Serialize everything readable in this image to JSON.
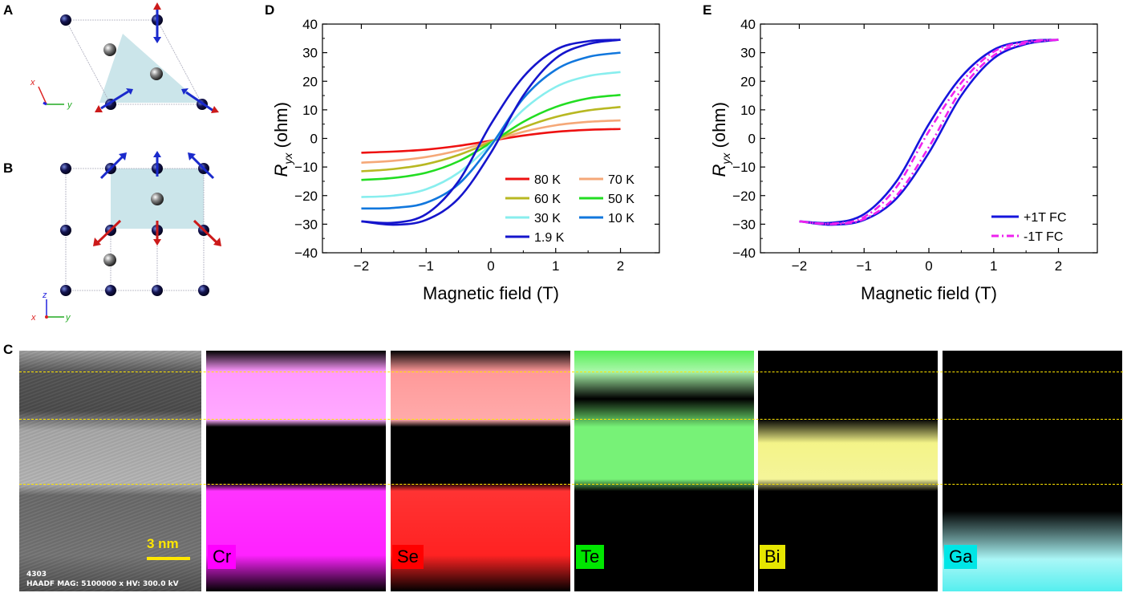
{
  "panels": {
    "a": "A",
    "b": "B",
    "c": "C",
    "d": "D",
    "e": "E"
  },
  "axes_labels_a": {
    "x": "x",
    "y": "y"
  },
  "axes_labels_b": {
    "x": "x",
    "y": "y",
    "z": "z"
  },
  "haadf": {
    "scale_label": "3 nm",
    "info_line1": "4303",
    "info_line2": "HAADF  MAG: 5100000 x  HV: 300.0 kV"
  },
  "eds_maps": [
    {
      "element": "Cr",
      "color": "#ff00ff"
    },
    {
      "element": "Se",
      "color": "#ff0000"
    },
    {
      "element": "Te",
      "color": "#00e600"
    },
    {
      "element": "Bi",
      "color": "#e6e600"
    },
    {
      "element": "Ga",
      "color": "#00e6e6"
    }
  ],
  "chart_data": [
    {
      "type": "line",
      "panel": "D",
      "xlabel": "Magnetic field (T)",
      "ylabel_main": "R",
      "ylabel_sub": "yx",
      "ylabel_unit": " (ohm)",
      "xlim": [
        -2.6,
        2.6
      ],
      "ylim": [
        -40,
        40
      ],
      "xticks": [
        -2,
        -1,
        0,
        1,
        2
      ],
      "xtick_labels": [
        "−2",
        "−1",
        "0",
        "1",
        "2"
      ],
      "yticks": [
        -40,
        -30,
        -20,
        -10,
        0,
        10,
        20,
        30,
        40
      ],
      "ytick_labels": [
        "−40",
        "−30",
        "−20",
        "−10",
        "0",
        "10",
        "20",
        "30",
        "40"
      ],
      "legend_position": "bottom-right",
      "series": [
        {
          "name": "80 K",
          "color": "#ee1111",
          "hysteresis": false,
          "x": [
            -2,
            -1.5,
            -1,
            -0.5,
            0,
            0.5,
            1,
            1.5,
            2
          ],
          "y": [
            -5,
            -4.6,
            -3.9,
            -2.6,
            -0.8,
            1.0,
            2.3,
            3.0,
            3.3
          ]
        },
        {
          "name": "70 K",
          "color": "#f5a878",
          "hysteresis": false,
          "x": [
            -2,
            -1.5,
            -1,
            -0.5,
            0,
            0.5,
            1,
            1.5,
            2
          ],
          "y": [
            -8.5,
            -7.8,
            -6.5,
            -4.2,
            -1.0,
            2.3,
            4.6,
            5.8,
            6.3
          ]
        },
        {
          "name": "60 K",
          "color": "#b8b822",
          "hysteresis": false,
          "x": [
            -2,
            -1.5,
            -1,
            -0.5,
            0,
            0.5,
            1,
            1.5,
            2
          ],
          "y": [
            -11.5,
            -10.7,
            -9.0,
            -5.8,
            -1.2,
            3.8,
            7.5,
            9.8,
            11
          ]
        },
        {
          "name": "50 K",
          "color": "#22dd22",
          "hysteresis": false,
          "x": [
            -2,
            -1.5,
            -1,
            -0.5,
            0,
            0.5,
            1,
            1.5,
            2
          ],
          "y": [
            -14.5,
            -13.8,
            -12.0,
            -8.0,
            -1.5,
            5.8,
            11.0,
            14.0,
            15.2
          ]
        },
        {
          "name": "30 K",
          "color": "#88eeee",
          "hysteresis": false,
          "x": [
            -2,
            -1.5,
            -1,
            -0.5,
            0,
            0.5,
            1,
            1.5,
            2
          ],
          "y": [
            -20.5,
            -20.0,
            -17.8,
            -12.0,
            -2.0,
            10.0,
            18.0,
            21.8,
            23.2
          ]
        },
        {
          "name": "10 K",
          "color": "#1177dd",
          "hysteresis": false,
          "x": [
            -2,
            -1.5,
            -1,
            -0.5,
            0,
            0.5,
            1,
            1.5,
            2
          ],
          "y": [
            -24.5,
            -24.3,
            -22.5,
            -16.0,
            -2.5,
            14.0,
            24.0,
            28.5,
            30
          ]
        },
        {
          "name": "1.9 K",
          "color": "#1515cc",
          "hysteresis": true,
          "up_x": [
            -2,
            -1.5,
            -1,
            -0.5,
            0,
            0.5,
            1,
            1.5,
            2
          ],
          "up_y": [
            -29,
            -30.2,
            -28.5,
            -21.0,
            -5.0,
            15.0,
            28.0,
            33.0,
            34.5
          ],
          "down_x": [
            2,
            1.5,
            1,
            0.5,
            0,
            -0.5,
            -1,
            -1.5,
            -2
          ],
          "down_y": [
            34.5,
            34.0,
            31.0,
            21.5,
            5.0,
            -15.0,
            -26.5,
            -29.5,
            -29
          ]
        }
      ]
    },
    {
      "type": "line",
      "panel": "E",
      "xlabel": "Magnetic field (T)",
      "ylabel_main": "R",
      "ylabel_sub": "yx",
      "ylabel_unit": " (ohm)",
      "xlim": [
        -2.6,
        2.6
      ],
      "ylim": [
        -40,
        40
      ],
      "xticks": [
        -2,
        -1,
        0,
        1,
        2
      ],
      "xtick_labels": [
        "−2",
        "−1",
        "0",
        "1",
        "2"
      ],
      "yticks": [
        -40,
        -30,
        -20,
        -10,
        0,
        10,
        20,
        30,
        40
      ],
      "ytick_labels": [
        "−40",
        "−30",
        "−20",
        "−10",
        "0",
        "10",
        "20",
        "30",
        "40"
      ],
      "legend_position": "bottom-right",
      "series": [
        {
          "name": "+1T FC",
          "color": "#1515dd",
          "dash": "solid",
          "hysteresis": true,
          "up_x": [
            -2,
            -1.5,
            -1,
            -0.5,
            0,
            0.5,
            1,
            1.5,
            2
          ],
          "up_y": [
            -29,
            -30.2,
            -28.5,
            -21.0,
            -5.0,
            15.0,
            28.0,
            33.0,
            34.5
          ],
          "down_x": [
            2,
            1.5,
            1,
            0.5,
            0,
            -0.5,
            -1,
            -1.5,
            -2
          ],
          "down_y": [
            34.5,
            34.0,
            31.0,
            21.5,
            5.0,
            -15.0,
            -26.5,
            -29.5,
            -29
          ]
        },
        {
          "name": "-1T FC",
          "color": "#ee22ee",
          "dash": "dashdot",
          "hysteresis": true,
          "up_x": [
            -2,
            -1.5,
            -1,
            -0.5,
            0,
            0.5,
            1,
            1.5,
            2
          ],
          "up_y": [
            -29,
            -30.0,
            -28.2,
            -20.0,
            -3.0,
            17.0,
            29.0,
            33.3,
            34.5
          ],
          "down_x": [
            2,
            1.5,
            1,
            0.5,
            0,
            -0.5,
            -1,
            -1.5,
            -2
          ],
          "down_y": [
            34.5,
            33.8,
            30.3,
            19.5,
            2.5,
            -17.0,
            -27.5,
            -29.8,
            -29
          ]
        }
      ]
    }
  ]
}
